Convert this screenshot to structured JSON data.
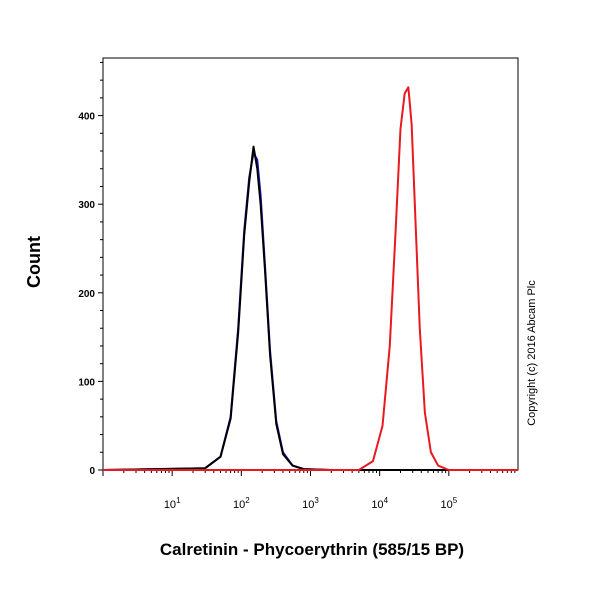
{
  "chart_data": {
    "type": "line",
    "xlabel": "Calretinin - Phycoerythrin (585/15 BP)",
    "ylabel": "Count",
    "xscale": "log",
    "xlim": [
      1,
      1000000
    ],
    "ylim": [
      0,
      465
    ],
    "x_ticks": [
      {
        "base": "10",
        "exp": "1",
        "value": 10
      },
      {
        "base": "10",
        "exp": "2",
        "value": 100
      },
      {
        "base": "10",
        "exp": "3",
        "value": 1000
      },
      {
        "base": "10",
        "exp": "4",
        "value": 10000
      },
      {
        "base": "10",
        "exp": "5",
        "value": 100000
      }
    ],
    "y_ticks": [
      0,
      100,
      200,
      300,
      400
    ],
    "series": [
      {
        "color": "#1a1acc",
        "x": [
          1,
          30,
          50,
          70,
          90,
          110,
          130,
          150,
          170,
          190,
          220,
          260,
          320,
          400,
          550,
          800,
          2000,
          1000000
        ],
        "y": [
          0,
          2,
          15,
          60,
          160,
          270,
          330,
          358,
          350,
          310,
          230,
          135,
          55,
          20,
          5,
          1,
          0,
          0
        ]
      },
      {
        "color": "#000000",
        "x": [
          1,
          30,
          50,
          70,
          90,
          110,
          130,
          150,
          170,
          190,
          220,
          260,
          320,
          400,
          550,
          800,
          2000,
          1000000
        ],
        "y": [
          0,
          2,
          15,
          58,
          155,
          265,
          325,
          365,
          340,
          300,
          225,
          130,
          52,
          18,
          5,
          1,
          0,
          0
        ]
      },
      {
        "color": "#e8191f",
        "x": [
          1,
          5000,
          8000,
          11000,
          14000,
          17000,
          20000,
          23000,
          26000,
          29000,
          33000,
          38000,
          45000,
          55000,
          70000,
          100000,
          1000000
        ],
        "y": [
          0,
          0,
          10,
          50,
          140,
          270,
          385,
          425,
          432,
          390,
          280,
          160,
          65,
          20,
          5,
          0,
          0
        ]
      }
    ],
    "annotations": [
      "Copyright (c) 2016 Abcam Plc"
    ]
  }
}
